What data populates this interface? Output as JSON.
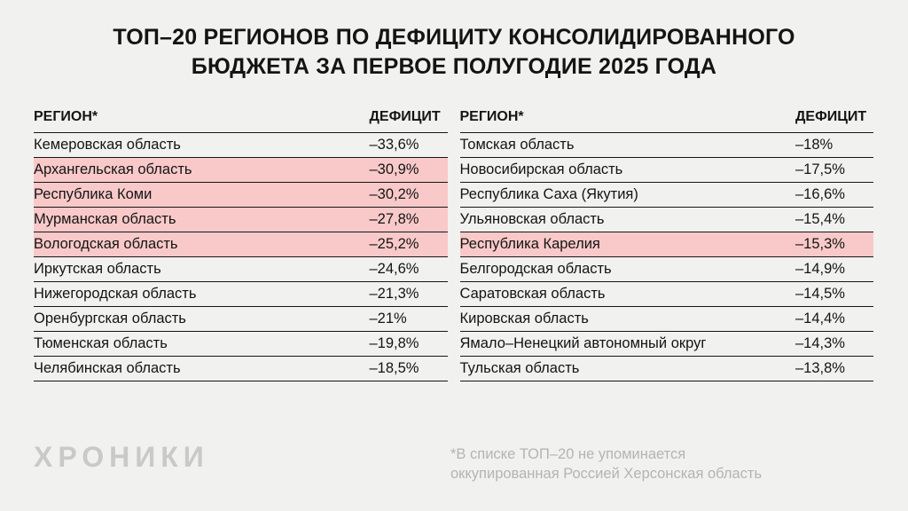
{
  "title_lines": [
    "ТОП–20 РЕГИОНОВ ПО ДЕФИЦИТУ КОНСОЛИДИРОВАННОГО",
    "БЮДЖЕТА ЗА ПЕРВОЕ ПОЛУГОДИЕ 2025 ГОДА"
  ],
  "columns": {
    "region": "РЕГИОН*",
    "deficit": "ДЕФИЦИТ"
  },
  "tables": [
    {
      "rows": [
        {
          "region": "Кемеровская область",
          "deficit": "–33,6%",
          "highlight": false
        },
        {
          "region": "Архангельская область",
          "deficit": "–30,9%",
          "highlight": true
        },
        {
          "region": "Республика Коми",
          "deficit": "–30,2%",
          "highlight": true
        },
        {
          "region": "Мурманская область",
          "deficit": "–27,8%",
          "highlight": true
        },
        {
          "region": "Вологодская область",
          "deficit": "–25,2%",
          "highlight": true
        },
        {
          "region": "Иркутская область",
          "deficit": "–24,6%",
          "highlight": false
        },
        {
          "region": "Нижегородская область",
          "deficit": "–21,3%",
          "highlight": false
        },
        {
          "region": "Оренбургская область",
          "deficit": "–21%",
          "highlight": false
        },
        {
          "region": "Тюменская область",
          "deficit": "–19,8%",
          "highlight": false
        },
        {
          "region": "Челябинская область",
          "deficit": "–18,5%",
          "highlight": false
        }
      ]
    },
    {
      "rows": [
        {
          "region": "Томская область",
          "deficit": "–18%",
          "highlight": false
        },
        {
          "region": "Новосибирская область",
          "deficit": "–17,5%",
          "highlight": false
        },
        {
          "region": "Республика Саха (Якутия)",
          "deficit": "–16,6%",
          "highlight": false
        },
        {
          "region": "Ульяновская область",
          "deficit": "–15,4%",
          "highlight": false
        },
        {
          "region": "Республика Карелия",
          "deficit": "–15,3%",
          "highlight": true
        },
        {
          "region": "Белгородская область",
          "deficit": "–14,9%",
          "highlight": false
        },
        {
          "region": "Саратовская область",
          "deficit": "–14,5%",
          "highlight": false
        },
        {
          "region": "Кировская область",
          "deficit": "–14,4%",
          "highlight": false
        },
        {
          "region": "Ямало–Ненецкий автономный округ",
          "deficit": "–14,3%",
          "highlight": false
        },
        {
          "region": "Тульская область",
          "deficit": "–13,8%",
          "highlight": false
        }
      ]
    }
  ],
  "footer": {
    "logo": "ХРОНИКИ",
    "footnote_lines": [
      "*В списке ТОП–20 не упоминается",
      "оккупированная Россией Херсонская область"
    ]
  },
  "colors": {
    "background": "#f1f1ef",
    "highlight_row": "#f9c9c9",
    "text": "#141414",
    "muted_text": "#b5b4b2",
    "logo": "#c9c9c7",
    "rule": "#161616"
  },
  "chart_data": {
    "type": "table",
    "title": "ТОП–20 регионов по дефициту консолидированного бюджета за первое полугодие 2025 года",
    "columns": [
      "Регион",
      "Дефицит, %"
    ],
    "rows": [
      [
        "Кемеровская область",
        -33.6
      ],
      [
        "Архангельская область",
        -30.9
      ],
      [
        "Республика Коми",
        -30.2
      ],
      [
        "Мурманская область",
        -27.8
      ],
      [
        "Вологодская область",
        -25.2
      ],
      [
        "Иркутская область",
        -24.6
      ],
      [
        "Нижегородская область",
        -21.3
      ],
      [
        "Оренбургская область",
        -21.0
      ],
      [
        "Тюменская область",
        -19.8
      ],
      [
        "Челябинская область",
        -18.5
      ],
      [
        "Томская область",
        -18.0
      ],
      [
        "Новосибирская область",
        -17.5
      ],
      [
        "Республика Саха (Якутия)",
        -16.6
      ],
      [
        "Ульяновская область",
        -15.4
      ],
      [
        "Республика Карелия",
        -15.3
      ],
      [
        "Белгородская область",
        -14.9
      ],
      [
        "Саратовская область",
        -14.5
      ],
      [
        "Кировская область",
        -14.4
      ],
      [
        "Ямало–Ненецкий автономный округ",
        -14.3
      ],
      [
        "Тульская область",
        -13.8
      ]
    ],
    "highlighted_rows": [
      "Архангельская область",
      "Республика Коми",
      "Мурманская область",
      "Вологодская область",
      "Республика Карелия"
    ],
    "legend_position": "none",
    "notes": "Pink rows are highlighted in the source infographic"
  }
}
